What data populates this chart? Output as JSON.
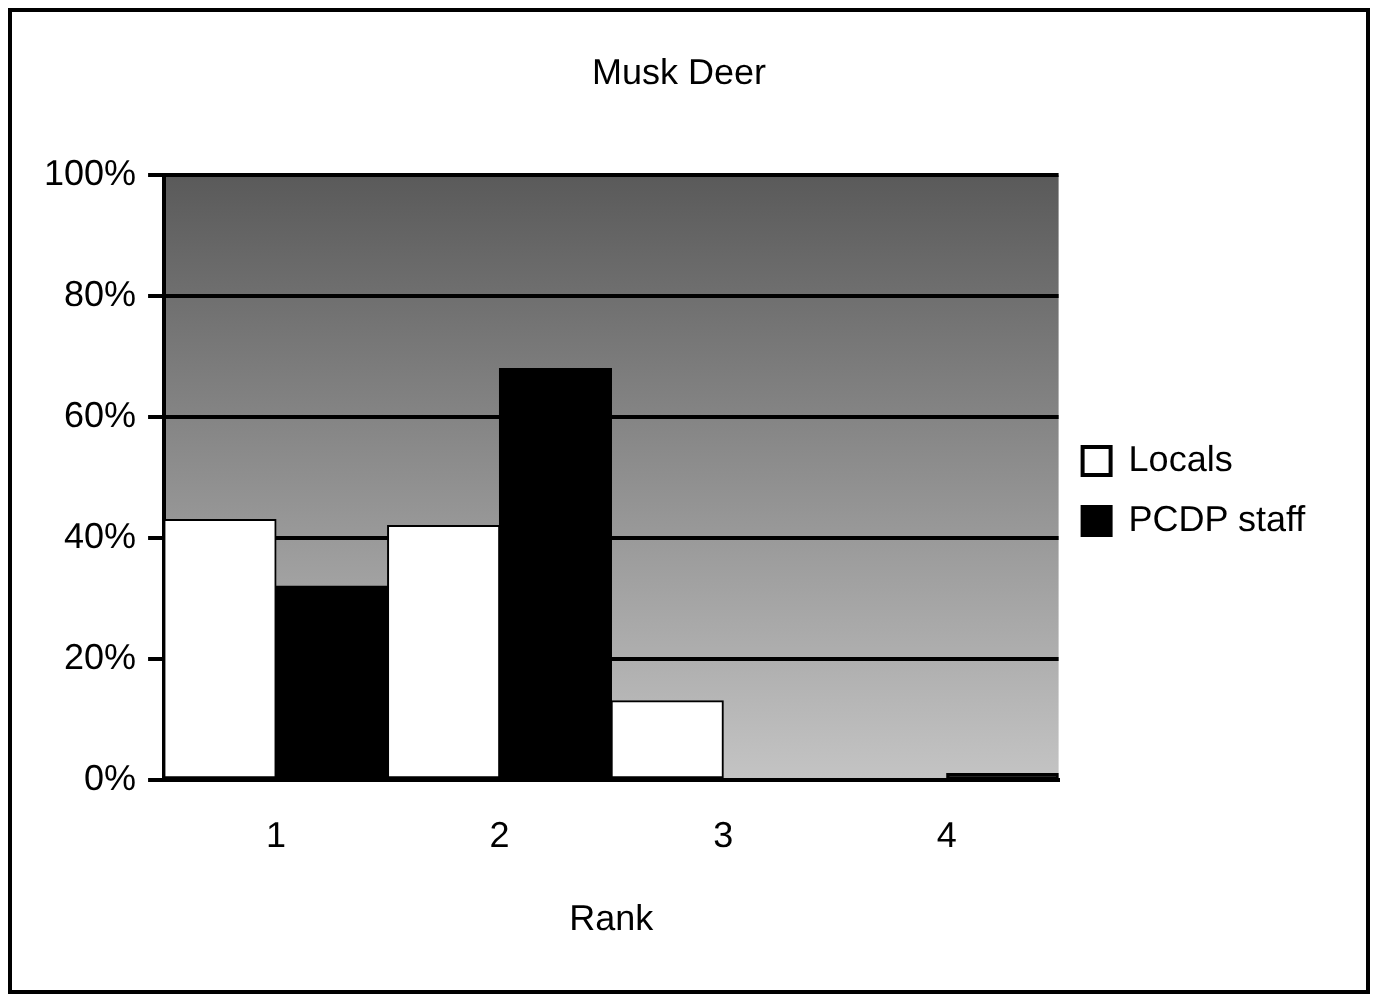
{
  "chart_data": {
    "type": "bar",
    "title": "Musk Deer",
    "xlabel": "Rank",
    "categories": [
      "1",
      "2",
      "3",
      "4"
    ],
    "series": [
      {
        "name": "Locals",
        "color": "#ffffff",
        "values": [
          43,
          42,
          13,
          0
        ]
      },
      {
        "name": "PCDP staff",
        "color": "#000000",
        "values": [
          32,
          68,
          0,
          1
        ]
      }
    ],
    "ylim": [
      0,
      100
    ],
    "yticks": [
      {
        "value": 0,
        "label": "0%"
      },
      {
        "value": 20,
        "label": "20%"
      },
      {
        "value": 40,
        "label": "40%"
      },
      {
        "value": 60,
        "label": "60%"
      },
      {
        "value": 80,
        "label": "80%"
      },
      {
        "value": 100,
        "label": "100%"
      }
    ],
    "grid": "y",
    "legend": "right"
  }
}
